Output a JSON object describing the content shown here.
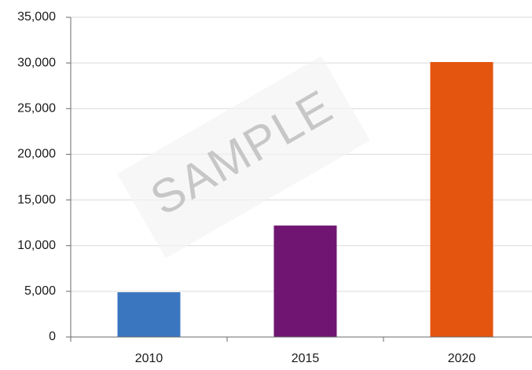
{
  "chart_data": {
    "type": "bar",
    "categories": [
      "2010",
      "2015",
      "2020"
    ],
    "values": [
      4900,
      12200,
      30100
    ],
    "bar_colors": [
      "#3a76c0",
      "#701672",
      "#e4550f"
    ],
    "ylim": [
      0,
      35000
    ],
    "yticks": [
      0,
      5000,
      10000,
      15000,
      20000,
      25000,
      30000,
      35000
    ],
    "ytick_labels": [
      "0",
      "5,000",
      "10,000",
      "15,000",
      "20,000",
      "25,000",
      "30,000",
      "35,000"
    ],
    "title": "",
    "xlabel": "",
    "ylabel": "",
    "grid": "horizontal",
    "legend": "none"
  },
  "watermark": {
    "text": "SAMPLE"
  }
}
